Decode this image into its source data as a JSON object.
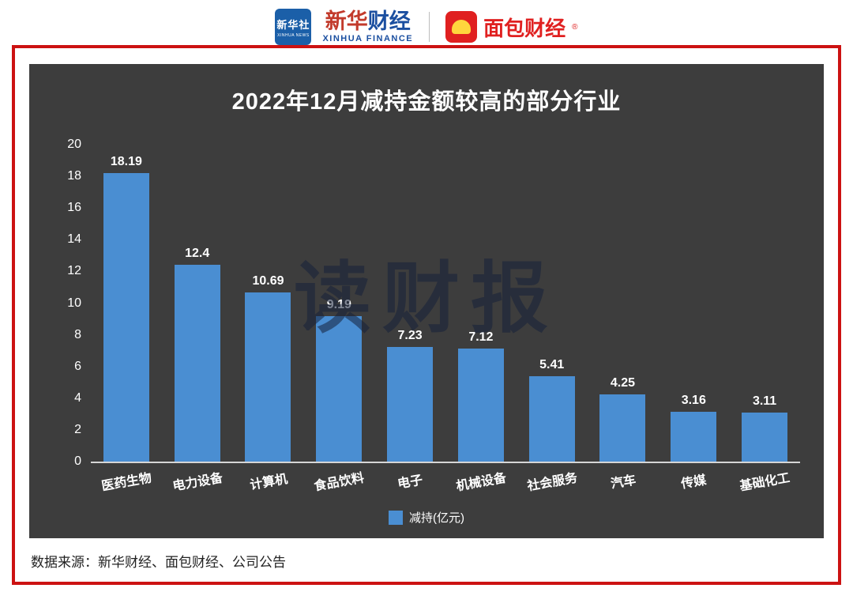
{
  "header": {
    "xinhua_logo_line1": "新华社",
    "xinhua_logo_line2": "XINHUA NEWS",
    "brand_cn_red": "新华",
    "brand_cn_blue": "财经",
    "brand_en": "XINHUA FINANCE",
    "partner_brand": "面包财经",
    "reg_mark": "®"
  },
  "chart_data": {
    "type": "bar",
    "title": "2022年12月减持金额较高的部分行业",
    "categories": [
      "医药生物",
      "电力设备",
      "计算机",
      "食品饮料",
      "电子",
      "机械设备",
      "社会服务",
      "汽车",
      "传媒",
      "基础化工"
    ],
    "values": [
      18.19,
      12.4,
      10.69,
      9.19,
      7.23,
      7.12,
      5.41,
      4.25,
      3.16,
      3.11
    ],
    "ylim": [
      0,
      20
    ],
    "ytick_step": 2,
    "legend": "减持(亿元)",
    "bar_color": "#4a8ed2",
    "panel_color": "#3d3d3d",
    "frame_color": "#cc1212",
    "watermark": "读财报",
    "legend_position": "bottom-center",
    "grid": false
  },
  "footer": {
    "source": "数据来源：新华财经、面包财经、公司公告"
  }
}
